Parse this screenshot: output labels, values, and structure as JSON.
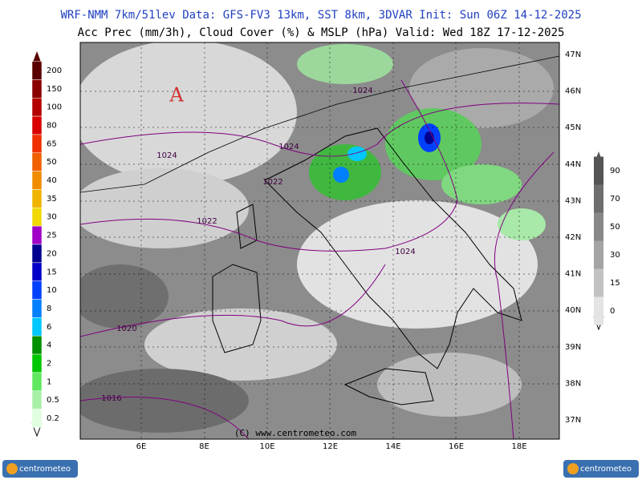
{
  "header": {
    "line1": "WRF-NMM 7km/51lev  Data: GFS-FV3 13km, SST 8km, 3DVAR  Init: Sun 06Z 14-12-2025",
    "line2": "Acc Prec (mm/3h), Cloud Cover (%) & MSLP (hPa)  Valid: Wed 18Z 17-12-2025"
  },
  "precip_scale": {
    "labels": [
      "200",
      "150",
      "100",
      "80",
      "65",
      "50",
      "40",
      "35",
      "30",
      "25",
      "20",
      "15",
      "10",
      "8",
      "6",
      "4",
      "2",
      "1",
      "0.5",
      "0.2"
    ],
    "colors": [
      "#5a0000",
      "#8b0000",
      "#b40000",
      "#d80000",
      "#f03000",
      "#f06000",
      "#f08c00",
      "#f0b400",
      "#f0d800",
      "#a000c8",
      "#000090",
      "#0000c8",
      "#0040ff",
      "#0080ff",
      "#00c8ff",
      "#009000",
      "#00c800",
      "#60e860",
      "#a8f0a8",
      "#e0ffe0"
    ]
  },
  "cloud_scale": {
    "labels": [
      "90",
      "70",
      "50",
      "30",
      "15",
      "0"
    ],
    "colors": [
      "#555555",
      "#6e6e6e",
      "#888888",
      "#a4a4a4",
      "#c2c2c2",
      "#e4e4e4"
    ]
  },
  "latitudes": [
    "47N",
    "46N",
    "45N",
    "44N",
    "43N",
    "42N",
    "41N",
    "40N",
    "39N",
    "38N",
    "37N"
  ],
  "longitudes": [
    "6E",
    "8E",
    "10E",
    "12E",
    "14E",
    "16E",
    "18E"
  ],
  "isobars": [
    "1024",
    "1024",
    "1024",
    "1022",
    "1022",
    "1024",
    "1020",
    "1016"
  ],
  "high_marker": "A",
  "copyright": "(C) www.centrometeo.com",
  "logo_left": "centrometeo",
  "logo_right": "centrometeo"
}
